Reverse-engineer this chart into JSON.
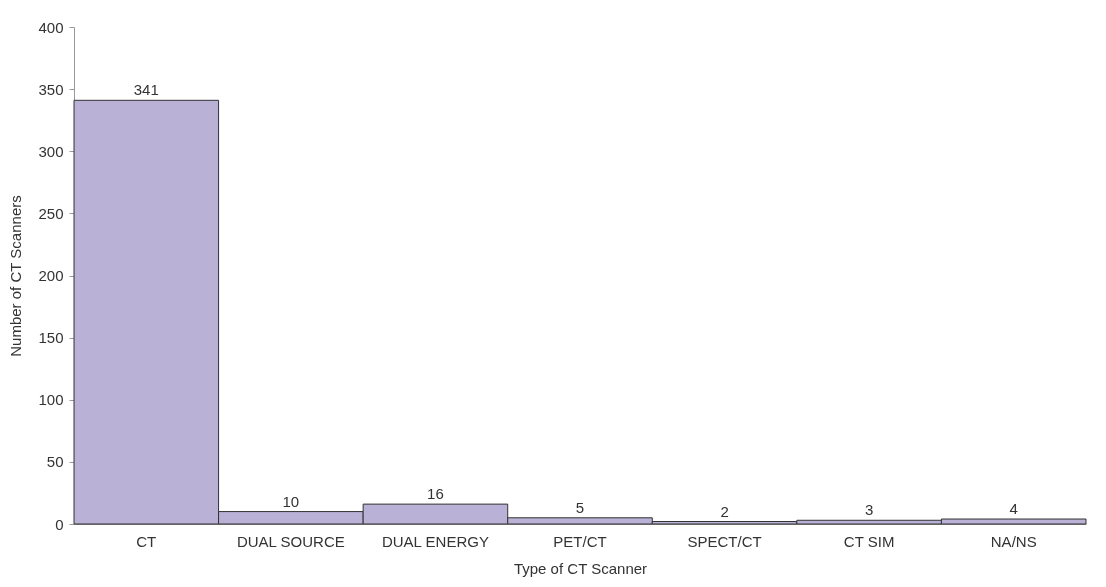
{
  "chart_data": {
    "type": "bar",
    "xlabel": "Type of CT Scanner",
    "ylabel": "Number of CT Scanners",
    "categories": [
      "CT",
      "DUAL SOURCE",
      "DUAL ENERGY",
      "PET/CT",
      "SPECT/CT",
      "CT SIM",
      "NA/NS"
    ],
    "values": [
      341,
      10,
      16,
      5,
      2,
      3,
      4
    ],
    "color": "#b9b1d6",
    "ylim": [
      0,
      400
    ],
    "yticks": [
      0,
      50,
      100,
      150,
      200,
      250,
      300,
      350,
      400
    ],
    "grid": false,
    "data_labels": true
  }
}
